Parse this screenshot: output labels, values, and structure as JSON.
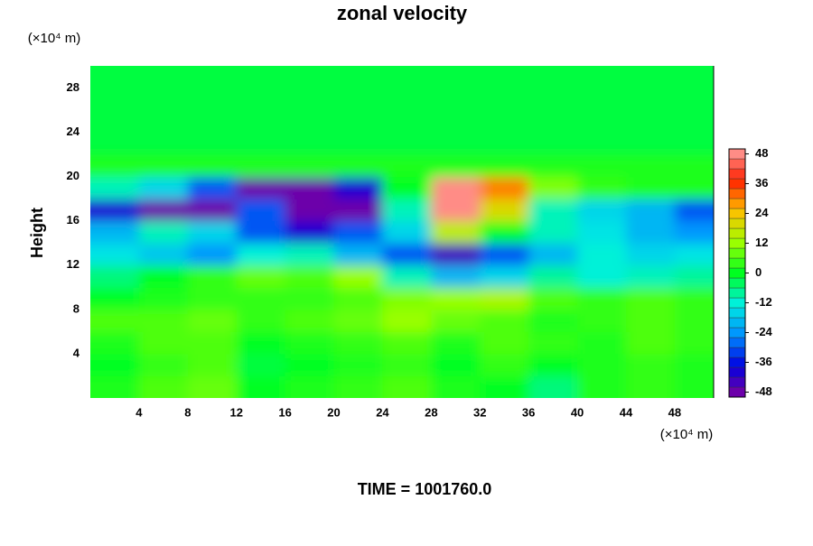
{
  "chart_data": {
    "type": "contour",
    "title": "zonal velocity",
    "ylabel": "Height",
    "y_unit_label": "(×10⁴ m)",
    "x_unit_label": "(×10⁴ m)",
    "footer": "TIME = 1001760.0",
    "xlim": [
      0,
      51.2
    ],
    "ylim": [
      0,
      30
    ],
    "xticks": [
      4,
      8,
      12,
      16,
      20,
      24,
      28,
      32,
      36,
      40,
      44,
      48
    ],
    "yticks": [
      4,
      8,
      12,
      16,
      20,
      24,
      28
    ],
    "zlim": [
      -50,
      50
    ],
    "zticks": [
      -48,
      -36,
      -24,
      -12,
      0,
      12,
      24,
      36,
      48
    ],
    "colorscale": [
      "#8000a0",
      "#0000e0",
      "#0090ff",
      "#00f0e0",
      "#00ff20",
      "#a0ff00",
      "#ffc000",
      "#ff2000",
      "#ffa0a0"
    ],
    "x": [
      2,
      6,
      10,
      14,
      18,
      22,
      26,
      30,
      34,
      38,
      42,
      46,
      50
    ],
    "y": [
      1,
      3,
      5,
      7,
      9,
      11,
      13,
      15,
      17,
      19,
      21,
      23,
      25,
      27,
      29
    ],
    "z": [
      [
        2,
        6,
        8,
        0,
        2,
        4,
        6,
        2,
        0,
        -6,
        2,
        4,
        2
      ],
      [
        0,
        4,
        6,
        -2,
        0,
        2,
        4,
        0,
        4,
        0,
        2,
        4,
        2
      ],
      [
        2,
        6,
        6,
        0,
        2,
        4,
        6,
        2,
        6,
        4,
        2,
        6,
        4
      ],
      [
        6,
        6,
        8,
        4,
        6,
        8,
        12,
        8,
        6,
        2,
        4,
        6,
        4
      ],
      [
        0,
        2,
        4,
        4,
        4,
        6,
        10,
        12,
        14,
        6,
        4,
        6,
        4
      ],
      [
        -6,
        0,
        4,
        8,
        6,
        12,
        -10,
        -20,
        -16,
        -8,
        -12,
        -10,
        -8
      ],
      [
        -14,
        -18,
        -24,
        -12,
        -10,
        -20,
        -30,
        -44,
        -30,
        -20,
        -12,
        -16,
        -14
      ],
      [
        -20,
        -10,
        -16,
        -30,
        -40,
        -30,
        -16,
        16,
        0,
        -10,
        -14,
        -20,
        -24
      ],
      [
        -40,
        -48,
        -48,
        -30,
        -48,
        -48,
        -10,
        48,
        20,
        -10,
        -16,
        -20,
        -30
      ],
      [
        -10,
        -16,
        -30,
        -48,
        -48,
        -40,
        0,
        48,
        30,
        10,
        4,
        2,
        2
      ],
      [
        2,
        2,
        2,
        2,
        2,
        2,
        2,
        2,
        2,
        2,
        2,
        2,
        2
      ],
      [
        -2,
        -2,
        -2,
        -2,
        -2,
        -2,
        -2,
        -2,
        -2,
        -2,
        -2,
        -2,
        -2
      ],
      [
        -2,
        -2,
        -2,
        -2,
        -2,
        -2,
        -2,
        -2,
        -2,
        -2,
        -2,
        -2,
        -2
      ],
      [
        -2,
        -2,
        -2,
        -2,
        -2,
        -2,
        -2,
        -2,
        -2,
        -2,
        -2,
        -2,
        -2
      ],
      [
        -2,
        -2,
        -2,
        -2,
        -2,
        -2,
        -2,
        -2,
        -2,
        -2,
        -2,
        -2,
        -2
      ]
    ]
  }
}
